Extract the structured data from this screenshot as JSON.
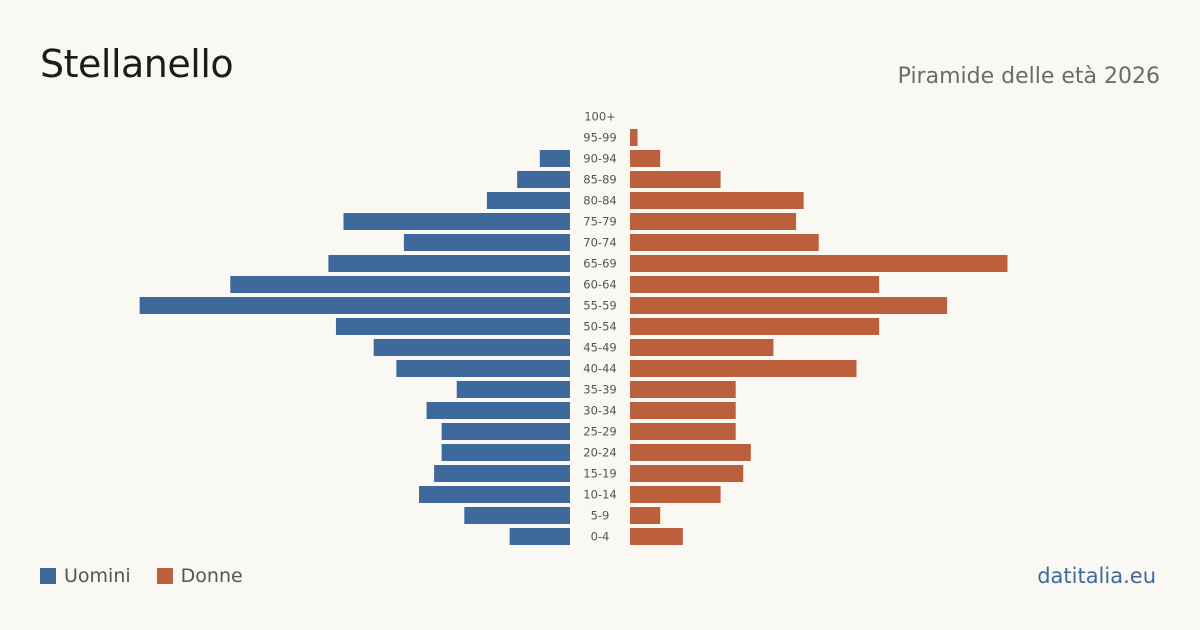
{
  "header": {
    "title": "Stellanello",
    "subtitle": "Piramide delle età 2026"
  },
  "brand": "datitalia.eu",
  "colors": {
    "men": "#3d6a9b",
    "women": "#bb5f3d",
    "background": "#faf8f3"
  },
  "chart_data": {
    "type": "bar",
    "orientation": "horizontal-pyramid",
    "title": "",
    "categories": [
      "100+",
      "95-99",
      "90-94",
      "85-89",
      "80-84",
      "75-79",
      "70-74",
      "65-69",
      "60-64",
      "55-59",
      "50-54",
      "45-49",
      "40-44",
      "35-39",
      "30-34",
      "25-29",
      "20-24",
      "15-19",
      "10-14",
      "5-9",
      "0-4"
    ],
    "series": [
      {
        "name": "Uomini",
        "values": [
          0,
          0,
          4,
          7,
          11,
          30,
          22,
          32,
          45,
          57,
          31,
          26,
          23,
          15,
          19,
          17,
          17,
          18,
          20,
          14,
          8
        ]
      },
      {
        "name": "Donne",
        "values": [
          0,
          1,
          4,
          12,
          23,
          22,
          25,
          50,
          33,
          42,
          33,
          19,
          30,
          14,
          14,
          14,
          16,
          15,
          12,
          4,
          7
        ]
      }
    ],
    "legend": "bottom-left",
    "grid": false
  }
}
